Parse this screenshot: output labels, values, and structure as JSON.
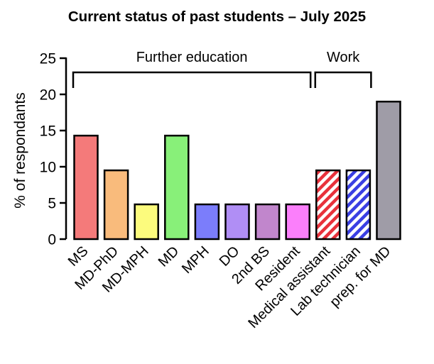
{
  "chart_data": {
    "type": "bar",
    "title": "Current status of past students – July 2025",
    "xlabel": "",
    "ylabel": "% of respondants",
    "ylim": [
      0,
      25
    ],
    "yticks": [
      0,
      5,
      10,
      15,
      20,
      25
    ],
    "grid": false,
    "legend": "none",
    "categories": [
      "MS",
      "MD-PhD",
      "MD-MPH",
      "MD",
      "MPH",
      "DO",
      "2nd BS",
      "Resident",
      "Medical assistant",
      "Lab technician",
      "prep. for MD"
    ],
    "values": [
      14.3,
      9.5,
      4.8,
      14.3,
      4.8,
      4.8,
      4.8,
      4.8,
      9.5,
      9.5,
      19.0
    ],
    "colors": [
      "#f47a7a",
      "#f9bb7c",
      "#fcfb7d",
      "#88f079",
      "#7b7dfb",
      "#b08ef5",
      "#c186cc",
      "#fb7ffb",
      "#e8313b",
      "#3a3fe3",
      "#9f9ca7"
    ],
    "hatched": [
      false,
      false,
      false,
      false,
      false,
      false,
      false,
      false,
      true,
      true,
      false
    ],
    "groups": [
      {
        "label": "Further education",
        "from": 0,
        "to": 7
      },
      {
        "label": "Work",
        "from": 8,
        "to": 9
      }
    ]
  }
}
